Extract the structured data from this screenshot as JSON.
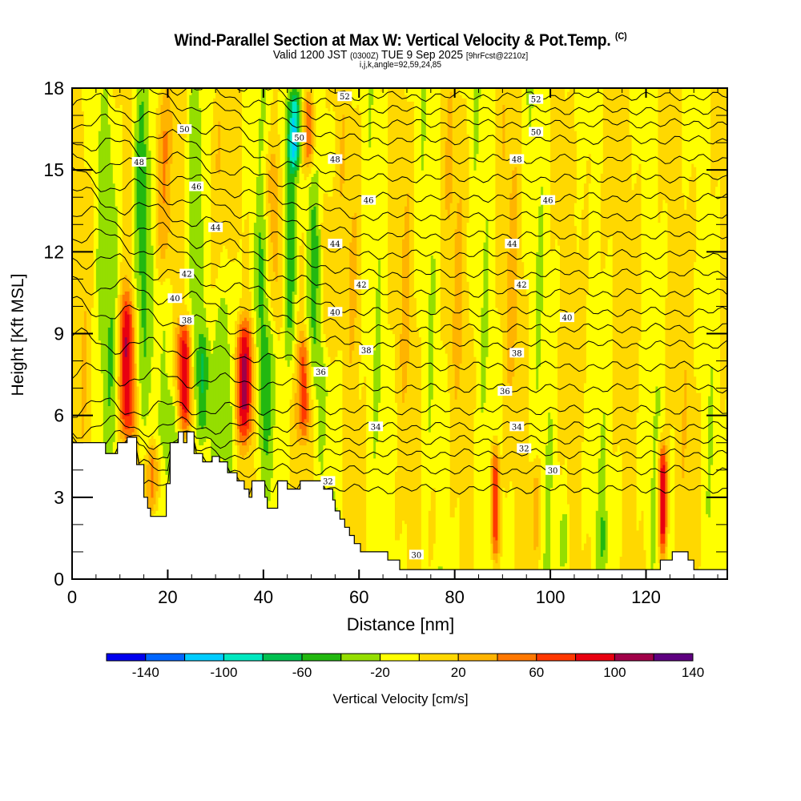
{
  "header": {
    "title": "Wind-Parallel Section at Max W: Vertical Velocity & Pot.Temp.",
    "copyright_mark": "(C)",
    "valid_prefix": "Valid 1200 JST",
    "valid_utc": "(0300Z)",
    "valid_date": "TUE 9 Sep 2025",
    "forecast": "[9hrFcst@2210z]",
    "grid_info": "i,j,k,angle=92,59,24,85"
  },
  "chart_data": {
    "type": "heatmap",
    "title": "Wind-Parallel Section at Max W: Vertical Velocity & Pot.Temp.",
    "xlabel": "Distance [nm]",
    "ylabel": "Height [Kft MSL]",
    "xlim": [
      0,
      137
    ],
    "ylim": [
      0,
      18
    ],
    "x_ticks": [
      0,
      20,
      40,
      60,
      80,
      100,
      120
    ],
    "x_minor_step": 5,
    "y_ticks": [
      0,
      3,
      6,
      9,
      12,
      15,
      18
    ],
    "y_minor_step": 1,
    "colorbar": {
      "label": "Vertical Velocity [cm/s]",
      "levels": [
        -160,
        -140,
        -120,
        -100,
        -80,
        -60,
        -40,
        -20,
        0,
        20,
        40,
        60,
        80,
        100,
        120,
        140,
        160
      ],
      "colors": [
        "#0000ee",
        "#0066ff",
        "#00ccff",
        "#00e8c0",
        "#00c050",
        "#22b810",
        "#95de00",
        "#ffff00",
        "#ffd800",
        "#ffb400",
        "#ff7800",
        "#ff3800",
        "#e80010",
        "#a00048",
        "#5e0080",
        "#5e0080"
      ],
      "tick_labels": [
        -140,
        -100,
        -60,
        -20,
        20,
        60,
        100,
        140
      ]
    },
    "background_value": -5,
    "vertical_velocity_features": [
      {
        "x": 3,
        "zmin": 5,
        "zmax": 18,
        "width": 2.5,
        "value": 15
      },
      {
        "x": 8,
        "zmin": 5,
        "zmax": 18,
        "width": 2,
        "value": -25
      },
      {
        "x": 11.5,
        "zmin": 5,
        "zmax": 10.5,
        "width": 1.6,
        "value": 100
      },
      {
        "x": 14.5,
        "zmin": 5.5,
        "zmax": 18,
        "width": 1.6,
        "value": -45
      },
      {
        "x": 17,
        "zmin": 2.5,
        "zmax": 5,
        "width": 1.5,
        "value": 50
      },
      {
        "x": 19,
        "zmin": 11,
        "zmax": 18,
        "width": 2,
        "value": 45
      },
      {
        "x": 21,
        "zmin": 3.5,
        "zmax": 7,
        "width": 1.2,
        "value": -30
      },
      {
        "x": 23.5,
        "zmin": 5.5,
        "zmax": 9.5,
        "width": 1.4,
        "value": 100
      },
      {
        "x": 25.5,
        "zmin": 5,
        "zmax": 18,
        "width": 1.6,
        "value": -35
      },
      {
        "x": 27.5,
        "zmin": 5,
        "zmax": 9,
        "width": 1.2,
        "value": -45
      },
      {
        "x": 30,
        "zmin": 10,
        "zmax": 18,
        "width": 2.5,
        "value": 25
      },
      {
        "x": 33,
        "zmin": 4,
        "zmax": 12,
        "width": 2,
        "value": -30
      },
      {
        "x": 36,
        "zmin": 5,
        "zmax": 9.5,
        "width": 2,
        "value": 95
      },
      {
        "x": 40,
        "zmin": 4,
        "zmax": 14,
        "width": 1.6,
        "value": -40
      },
      {
        "x": 42,
        "zmin": 9,
        "zmax": 16,
        "width": 2,
        "value": 45
      },
      {
        "x": 45.5,
        "zmin": 8,
        "zmax": 18,
        "width": 1.5,
        "value": -60
      },
      {
        "x": 46.5,
        "zmin": 15,
        "zmax": 18,
        "width": 1.2,
        "value": -80
      },
      {
        "x": 48.5,
        "zmin": 5,
        "zmax": 9,
        "width": 1.2,
        "value": 70
      },
      {
        "x": 49.5,
        "zmin": 15,
        "zmax": 18,
        "width": 1.3,
        "value": 65
      },
      {
        "x": 51,
        "zmin": 7,
        "zmax": 14,
        "width": 1.6,
        "value": -40
      },
      {
        "x": 53,
        "zmin": 8,
        "zmax": 14,
        "width": 1.5,
        "value": 45
      },
      {
        "x": 59,
        "zmin": 8,
        "zmax": 18,
        "width": 3,
        "value": 15
      },
      {
        "x": 66,
        "zmin": 1,
        "zmax": 4,
        "width": 1.3,
        "value": 20
      },
      {
        "x": 70,
        "zmin": 6,
        "zmax": 18,
        "width": 2.5,
        "value": 15
      },
      {
        "x": 76,
        "zmin": 0.5,
        "zmax": 4,
        "width": 2,
        "value": 15
      },
      {
        "x": 80,
        "zmin": 6,
        "zmax": 18,
        "width": 3,
        "value": 15
      },
      {
        "x": 88.5,
        "zmin": 0.5,
        "zmax": 5,
        "width": 0.9,
        "value": 100
      },
      {
        "x": 92,
        "zmin": 6,
        "zmax": 18,
        "width": 3,
        "value": 15
      },
      {
        "x": 97,
        "zmin": 0.8,
        "zmax": 4.5,
        "width": 1.2,
        "value": 35
      },
      {
        "x": 103,
        "zmin": 0.5,
        "zmax": 2.5,
        "width": 1,
        "value": -30
      },
      {
        "x": 108,
        "zmin": 6,
        "zmax": 18,
        "width": 3,
        "value": 15
      },
      {
        "x": 111,
        "zmin": 0.5,
        "zmax": 2.5,
        "width": 1,
        "value": -25
      },
      {
        "x": 118,
        "zmin": 6,
        "zmax": 18,
        "width": 3,
        "value": 15
      },
      {
        "x": 123.5,
        "zmin": 0.8,
        "zmax": 5,
        "width": 0.9,
        "value": 110
      },
      {
        "x": 130,
        "zmin": 0.5,
        "zmax": 18,
        "width": 2.5,
        "value": 15
      }
    ],
    "potential_temperature": {
      "units": "K (labelled as value minus 270)",
      "interval": 1,
      "label_interval": 2,
      "levels": [
        30,
        31,
        32,
        33,
        34,
        35,
        36,
        37,
        38,
        39,
        40,
        41,
        42,
        43,
        44,
        45,
        46,
        47,
        48,
        49,
        50,
        51,
        52,
        53
      ],
      "height_at_level_east": [
        3.3,
        4.0,
        4.6,
        5.1,
        5.6,
        6.2,
        7.0,
        7.8,
        8.6,
        9.2,
        9.8,
        10.5,
        11.2,
        11.9,
        12.6,
        13.3,
        14.0,
        14.7,
        15.4,
        16.1,
        16.7,
        17.2,
        17.7,
        18.3
      ],
      "west_uplift": 2.2,
      "labels": [
        {
          "value": "52",
          "x": 57,
          "z": 17.7
        },
        {
          "value": "52",
          "x": 97,
          "z": 17.6
        },
        {
          "value": "50",
          "x": 23.5,
          "z": 16.5
        },
        {
          "value": "50",
          "x": 47.5,
          "z": 16.2
        },
        {
          "value": "50",
          "x": 97,
          "z": 16.4
        },
        {
          "value": "48",
          "x": 14,
          "z": 15.3
        },
        {
          "value": "48",
          "x": 55,
          "z": 15.4
        },
        {
          "value": "48",
          "x": 93,
          "z": 15.4
        },
        {
          "value": "46",
          "x": 26,
          "z": 14.4
        },
        {
          "value": "46",
          "x": 62,
          "z": 13.9
        },
        {
          "value": "46",
          "x": 99.5,
          "z": 13.9
        },
        {
          "value": "44",
          "x": 30,
          "z": 12.9
        },
        {
          "value": "44",
          "x": 55,
          "z": 12.3
        },
        {
          "value": "44",
          "x": 92,
          "z": 12.3
        },
        {
          "value": "42",
          "x": 24,
          "z": 11.2
        },
        {
          "value": "42",
          "x": 60.5,
          "z": 10.8
        },
        {
          "value": "42",
          "x": 94,
          "z": 10.8
        },
        {
          "value": "40",
          "x": 21.5,
          "z": 10.3
        },
        {
          "value": "40",
          "x": 55,
          "z": 9.8
        },
        {
          "value": "40",
          "x": 103.5,
          "z": 9.6
        },
        {
          "value": "38",
          "x": 24,
          "z": 9.5
        },
        {
          "value": "38",
          "x": 61.5,
          "z": 8.4
        },
        {
          "value": "38",
          "x": 93,
          "z": 8.3
        },
        {
          "value": "36",
          "x": 52,
          "z": 7.6
        },
        {
          "value": "36",
          "x": 90.5,
          "z": 6.9
        },
        {
          "value": "34",
          "x": 63.5,
          "z": 5.6
        },
        {
          "value": "34",
          "x": 93,
          "z": 5.6
        },
        {
          "value": "32",
          "x": 53.5,
          "z": 3.6
        },
        {
          "value": "32",
          "x": 94.5,
          "z": 4.8
        },
        {
          "value": "30",
          "x": 100.5,
          "z": 4.0
        },
        {
          "value": "30",
          "x": 72,
          "z": 0.9
        }
      ]
    },
    "terrain_kft": [
      [
        0,
        5.0
      ],
      [
        7,
        4.6
      ],
      [
        9.5,
        5.0
      ],
      [
        11.5,
        5.2
      ],
      [
        13.5,
        4.2
      ],
      [
        15,
        3.0
      ],
      [
        15.8,
        2.6
      ],
      [
        16.4,
        2.3
      ],
      [
        19.7,
        3.5
      ],
      [
        20.5,
        5.0
      ],
      [
        22.2,
        5.4
      ],
      [
        23.3,
        5.0
      ],
      [
        24,
        5.4
      ],
      [
        25.5,
        4.6
      ],
      [
        27.3,
        4.3
      ],
      [
        29.3,
        4.5
      ],
      [
        30.8,
        4.3
      ],
      [
        32.5,
        3.9
      ],
      [
        34.5,
        3.6
      ],
      [
        36,
        3.3
      ],
      [
        37,
        3.0
      ],
      [
        37.6,
        3.6
      ],
      [
        38.2,
        3.6
      ],
      [
        40.3,
        3.0
      ],
      [
        40.8,
        2.6
      ],
      [
        43,
        3.6
      ],
      [
        45,
        3.3
      ],
      [
        47.7,
        3.6
      ],
      [
        52.6,
        3.3
      ],
      [
        54.5,
        2.9
      ],
      [
        55,
        2.5
      ],
      [
        56,
        2.2
      ],
      [
        57,
        1.9
      ],
      [
        58,
        1.6
      ],
      [
        59,
        1.3
      ],
      [
        60.3,
        1.0
      ],
      [
        63,
        1.0
      ],
      [
        66,
        0.7
      ],
      [
        68.5,
        0.35
      ],
      [
        70.3,
        0.35
      ],
      [
        71,
        0.35
      ],
      [
        122.2,
        0.35
      ],
      [
        123,
        0.7
      ],
      [
        125.5,
        1.0
      ],
      [
        128.8,
        0.7
      ],
      [
        130,
        0.35
      ],
      [
        137,
        0.35
      ]
    ]
  }
}
